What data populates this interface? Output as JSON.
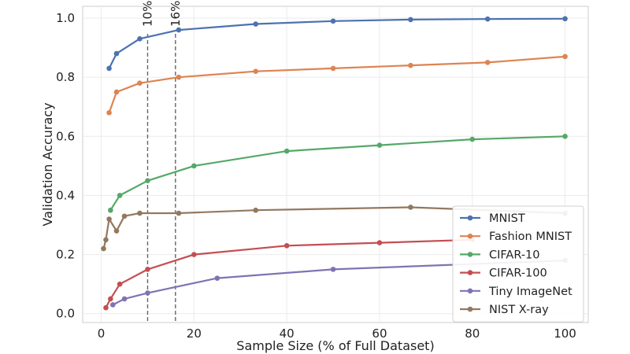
{
  "chart_data": {
    "type": "line",
    "title": "",
    "xlabel": "Sample Size (% of Full Dataset)",
    "ylabel": "Validation Accuracy",
    "xlim": [
      -4,
      105
    ],
    "ylim": [
      -0.03,
      1.04
    ],
    "x_ticks": [
      0,
      20,
      40,
      60,
      80,
      100
    ],
    "y_ticks": [
      0.0,
      0.2,
      0.4,
      0.6,
      0.8,
      1.0
    ],
    "grid": true,
    "legend_position": "lower-right",
    "reference_lines": [
      {
        "x": 10,
        "label": "10%"
      },
      {
        "x": 16,
        "label": "16%"
      }
    ],
    "series": [
      {
        "name": "MNIST",
        "color": "#4c72b0",
        "x": [
          1.7,
          3.3,
          8.3,
          16.7,
          33.3,
          50,
          66.7,
          83.3,
          100
        ],
        "y": [
          0.83,
          0.88,
          0.93,
          0.96,
          0.98,
          0.99,
          0.995,
          0.997,
          0.998
        ]
      },
      {
        "name": "Fashion MNIST",
        "color": "#dd8452",
        "x": [
          1.7,
          3.3,
          8.3,
          16.7,
          33.3,
          50,
          66.7,
          83.3,
          100
        ],
        "y": [
          0.68,
          0.75,
          0.78,
          0.8,
          0.82,
          0.83,
          0.84,
          0.85,
          0.87
        ]
      },
      {
        "name": "CIFAR-10",
        "color": "#55a868",
        "x": [
          2,
          4,
          10,
          20,
          40,
          60,
          80,
          100
        ],
        "y": [
          0.35,
          0.4,
          0.45,
          0.5,
          0.55,
          0.57,
          0.59,
          0.6
        ]
      },
      {
        "name": "CIFAR-100",
        "color": "#c44e52",
        "x": [
          1,
          2,
          4,
          10,
          20,
          40,
          60,
          80
        ],
        "y": [
          0.02,
          0.05,
          0.1,
          0.15,
          0.2,
          0.23,
          0.24,
          0.25
        ]
      },
      {
        "name": "Tiny ImageNet",
        "color": "#8172b3",
        "x": [
          2.5,
          5,
          10,
          25,
          50,
          100
        ],
        "y": [
          0.03,
          0.05,
          0.07,
          0.12,
          0.15,
          0.18
        ]
      },
      {
        "name": "NIST X-ray",
        "color": "#937860",
        "x": [
          0.5,
          1,
          1.7,
          3.3,
          5,
          8.3,
          16.7,
          33.3,
          66.7,
          100
        ],
        "y": [
          0.22,
          0.25,
          0.32,
          0.28,
          0.33,
          0.34,
          0.34,
          0.35,
          0.36,
          0.34
        ]
      }
    ]
  }
}
